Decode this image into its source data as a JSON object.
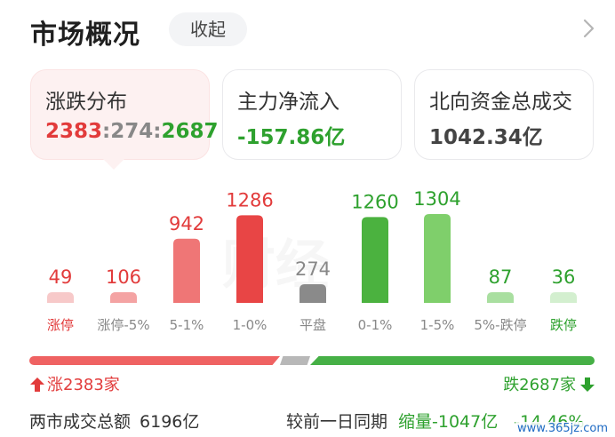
{
  "header": {
    "title": "市场概况",
    "collapse_label": "收起",
    "chevron_icon": "chevron-right-icon"
  },
  "cards": {
    "updown": {
      "label": "涨跌分布",
      "up": "2383",
      "sep1": ":",
      "flat": "274",
      "sep2": ":",
      "down": "2687"
    },
    "main_flow": {
      "label": "主力净流入",
      "value": "-157.86亿"
    },
    "northbound": {
      "label": "北向资金总成交",
      "value": "1042.34亿"
    }
  },
  "watermark": "财经",
  "chart_data": {
    "type": "bar",
    "categories": [
      "涨停",
      "涨停-5%",
      "5-1%",
      "1-0%",
      "平盘",
      "0-1%",
      "1-5%",
      "5%-跌停",
      "跌停"
    ],
    "values": [
      49,
      106,
      942,
      1286,
      274,
      1260,
      1304,
      87,
      36
    ],
    "value_labels": [
      "49",
      "106",
      "942",
      "1286",
      "274",
      "1260",
      "1304",
      "87",
      "36"
    ],
    "colors": [
      "#f7c9c9",
      "#f4a3a3",
      "#ef7676",
      "#e84545",
      "#8a8a8a",
      "#4bb23f",
      "#7fcf6b",
      "#a9dfa0",
      "#d3efcf"
    ],
    "label_colors": [
      "#e23b3b",
      "#e23b3b",
      "#e23b3b",
      "#e23b3b",
      "#888888",
      "#2ea12e",
      "#2ea12e",
      "#2ea12e",
      "#2ea12e"
    ],
    "category_colors": [
      "#e23b3b",
      "#888888",
      "#888888",
      "#888888",
      "#888888",
      "#888888",
      "#888888",
      "#888888",
      "#2ea12e"
    ],
    "ylim": [
      0,
      1304
    ]
  },
  "breadth": {
    "rise_label": "涨2383家",
    "fall_label": "跌2687家",
    "up_count": 2383,
    "flat_count": 274,
    "down_count": 2687
  },
  "footer": {
    "volume_label": "两市成交总额",
    "volume_value": "6196亿",
    "compare_label": "较前一日同期",
    "shrink_value": "缩量-1047亿",
    "shrink_pct": "-14.46%"
  },
  "site_mark": "www.365jz.com"
}
